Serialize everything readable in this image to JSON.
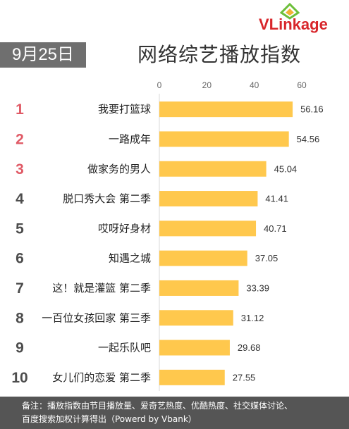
{
  "header": {
    "date": "9月25日",
    "title": "网络综艺播放指数",
    "logo_text": "VLinkage"
  },
  "colors": {
    "bar": "#ffc84d",
    "top_rank": "#e05a66",
    "other_rank": "#4d4d4d",
    "badge": "#6f6f6f",
    "footer": "#555555",
    "logo": "#d8262b"
  },
  "chart_data": {
    "type": "bar",
    "orientation": "horizontal",
    "xlim": [
      0,
      65
    ],
    "x_ticks": [
      0,
      20,
      40,
      60
    ],
    "ranks": [
      "1",
      "2",
      "3",
      "4",
      "5",
      "6",
      "7",
      "8",
      "9",
      "10"
    ],
    "categories": [
      "我要打篮球",
      "一路成年",
      "做家务的男人",
      "脱口秀大会 第二季",
      "哎呀好身材",
      "知遇之城",
      "这！就是灌篮 第二季",
      "一百位女孩回家 第三季",
      "一起乐队吧",
      "女儿们的恋爱 第二季"
    ],
    "values": [
      56.16,
      54.56,
      45.04,
      41.41,
      40.71,
      37.05,
      33.39,
      31.12,
      29.68,
      27.55
    ],
    "value_labels": [
      "56.16",
      "54.56",
      "45.04",
      "41.41",
      "40.71",
      "37.05",
      "33.39",
      "31.12",
      "29.68",
      "27.55"
    ],
    "grid": false
  },
  "footer": {
    "line1": "备注：播放指数由节目播放量、爱奇艺热度、优酷热度、社交媒体讨论、",
    "line2": "百度搜索加权计算得出（Powerd by Vbank）"
  }
}
